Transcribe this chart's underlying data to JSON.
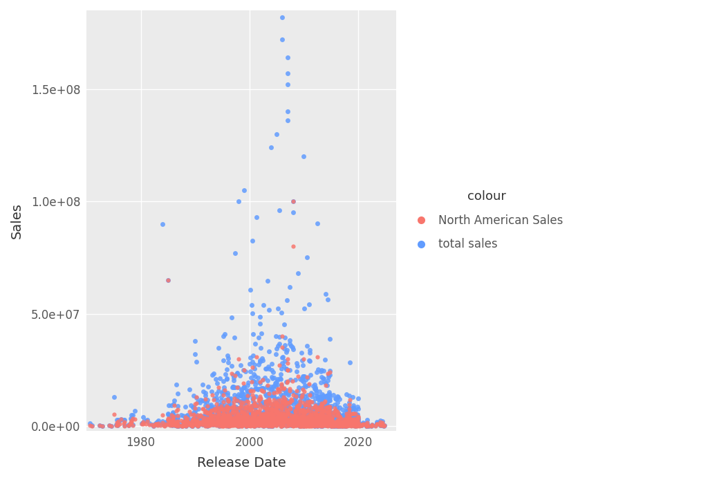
{
  "title": "",
  "xlabel": "Release Date",
  "ylabel": "Sales",
  "background_color": "#EBEBEB",
  "grid_color": "#FFFFFF",
  "red_color": "#F8766D",
  "blue_color": "#619CFF",
  "legend_title": "colour",
  "legend_label_red": "North American Sales",
  "legend_label_blue": "total sales",
  "xlim": [
    1970,
    2027
  ],
  "ylim": [
    -2000000,
    185000000
  ],
  "xticks": [
    1980,
    2000,
    2020
  ],
  "yticks": [
    0,
    50000000,
    100000000,
    150000000
  ],
  "ytick_labels": [
    "0.0e+00",
    "5.0e+07",
    "1.0e+08",
    "1.5e+08"
  ],
  "seed": 42
}
